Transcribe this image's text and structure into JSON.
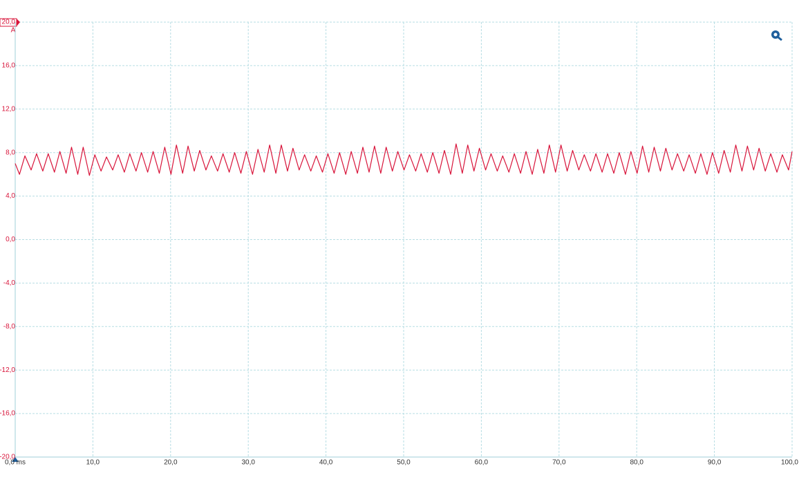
{
  "chart_data": {
    "type": "line",
    "y_unit": "A",
    "color": "#d8143a",
    "grid": true,
    "xlim": [
      0,
      100
    ],
    "ylim": [
      -20,
      20
    ],
    "xticks": [
      {
        "value": 0,
        "label": "0,0 ms"
      },
      {
        "value": 10,
        "label": "10,0"
      },
      {
        "value": 20,
        "label": "20,0"
      },
      {
        "value": 30,
        "label": "30,0"
      },
      {
        "value": 40,
        "label": "40,0"
      },
      {
        "value": 50,
        "label": "50,0"
      },
      {
        "value": 60,
        "label": "60,0"
      },
      {
        "value": 70,
        "label": "70,0"
      },
      {
        "value": 80,
        "label": "80,0"
      },
      {
        "value": 90,
        "label": "90,0"
      },
      {
        "value": 100,
        "label": "100,0"
      }
    ],
    "yticks": [
      {
        "value": 20,
        "label": "20,0"
      },
      {
        "value": 16,
        "label": "16,0"
      },
      {
        "value": 12,
        "label": "12,0"
      },
      {
        "value": 8,
        "label": "8,0"
      },
      {
        "value": 4,
        "label": "4,0"
      },
      {
        "value": 0,
        "label": "0,0"
      },
      {
        "value": -4,
        "label": "-4,0"
      },
      {
        "value": -8,
        "label": "-8,0"
      },
      {
        "value": -12,
        "label": "-12,0"
      },
      {
        "value": -16,
        "label": "-16,0"
      },
      {
        "value": -20,
        "label": "-20,0"
      }
    ],
    "x": [
      0,
      0.55,
      1.25,
      2.05,
      2.75,
      3.55,
      4.25,
      5.05,
      5.75,
      6.55,
      7.25,
      8.05,
      8.75,
      9.55,
      10.25,
      11.05,
      11.75,
      12.55,
      13.25,
      14.05,
      14.75,
      15.55,
      16.25,
      17.05,
      17.75,
      18.55,
      19.25,
      20.05,
      20.75,
      21.55,
      22.25,
      23.05,
      23.75,
      24.55,
      25.25,
      26.05,
      26.75,
      27.55,
      28.25,
      29.05,
      29.75,
      30.55,
      31.25,
      32.05,
      32.75,
      33.55,
      34.25,
      35.05,
      35.75,
      36.55,
      37.25,
      38.05,
      38.75,
      39.55,
      40.25,
      41.05,
      41.75,
      42.55,
      43.25,
      44.05,
      44.75,
      45.55,
      46.25,
      47.05,
      47.75,
      48.55,
      49.25,
      50.05,
      50.75,
      51.55,
      52.25,
      53.05,
      53.75,
      54.55,
      55.25,
      56.05,
      56.75,
      57.55,
      58.25,
      59.05,
      59.75,
      60.55,
      61.25,
      62.05,
      62.75,
      63.55,
      64.25,
      65.05,
      65.75,
      66.55,
      67.25,
      68.05,
      68.75,
      69.55,
      70.25,
      71.05,
      71.75,
      72.55,
      73.25,
      74.05,
      74.75,
      75.55,
      76.25,
      77.05,
      77.75,
      78.55,
      79.25,
      80.05,
      80.75,
      81.55,
      82.25,
      83.05,
      83.75,
      84.55,
      85.25,
      86.05,
      86.75,
      87.55,
      88.25,
      89.05,
      89.75,
      90.55,
      91.25,
      92.05,
      92.75,
      93.55,
      94.25,
      95.05,
      95.75,
      96.55,
      97.25,
      98.05,
      98.75,
      99.55,
      100
    ],
    "values": [
      7.0,
      6.0,
      7.7,
      6.4,
      7.9,
      6.3,
      7.9,
      6.2,
      8.1,
      6.1,
      8.5,
      6.0,
      8.5,
      5.9,
      7.8,
      6.3,
      7.6,
      6.4,
      7.8,
      6.2,
      7.9,
      6.3,
      8.0,
      6.2,
      8.1,
      6.1,
      8.5,
      6.0,
      8.7,
      6.1,
      8.6,
      6.3,
      8.2,
      6.4,
      7.7,
      6.3,
      7.9,
      6.2,
      8.0,
      6.1,
      8.1,
      6.0,
      8.3,
      6.2,
      8.7,
      6.1,
      8.7,
      6.3,
      8.4,
      6.4,
      7.8,
      6.3,
      7.7,
      6.2,
      7.9,
      6.1,
      8.0,
      6.0,
      8.1,
      6.1,
      8.5,
      6.2,
      8.6,
      6.1,
      8.5,
      6.3,
      8.1,
      6.4,
      7.8,
      6.3,
      7.9,
      6.2,
      8.0,
      6.1,
      8.2,
      6.0,
      8.8,
      6.1,
      8.7,
      6.3,
      8.4,
      6.4,
      7.9,
      6.3,
      7.7,
      6.2,
      7.9,
      6.1,
      8.1,
      6.0,
      8.3,
      6.1,
      8.7,
      6.2,
      8.7,
      6.3,
      8.2,
      6.4,
      7.8,
      6.3,
      7.9,
      6.2,
      7.9,
      6.1,
      8.0,
      6.0,
      8.1,
      6.1,
      8.6,
      6.2,
      8.5,
      6.3,
      8.4,
      6.4,
      7.9,
      6.3,
      7.8,
      6.1,
      7.9,
      6.0,
      8.0,
      6.1,
      8.2,
      6.2,
      8.7,
      6.3,
      8.6,
      6.4,
      8.4,
      6.3,
      7.9,
      6.2,
      7.8,
      6.4,
      8.1
    ]
  }
}
